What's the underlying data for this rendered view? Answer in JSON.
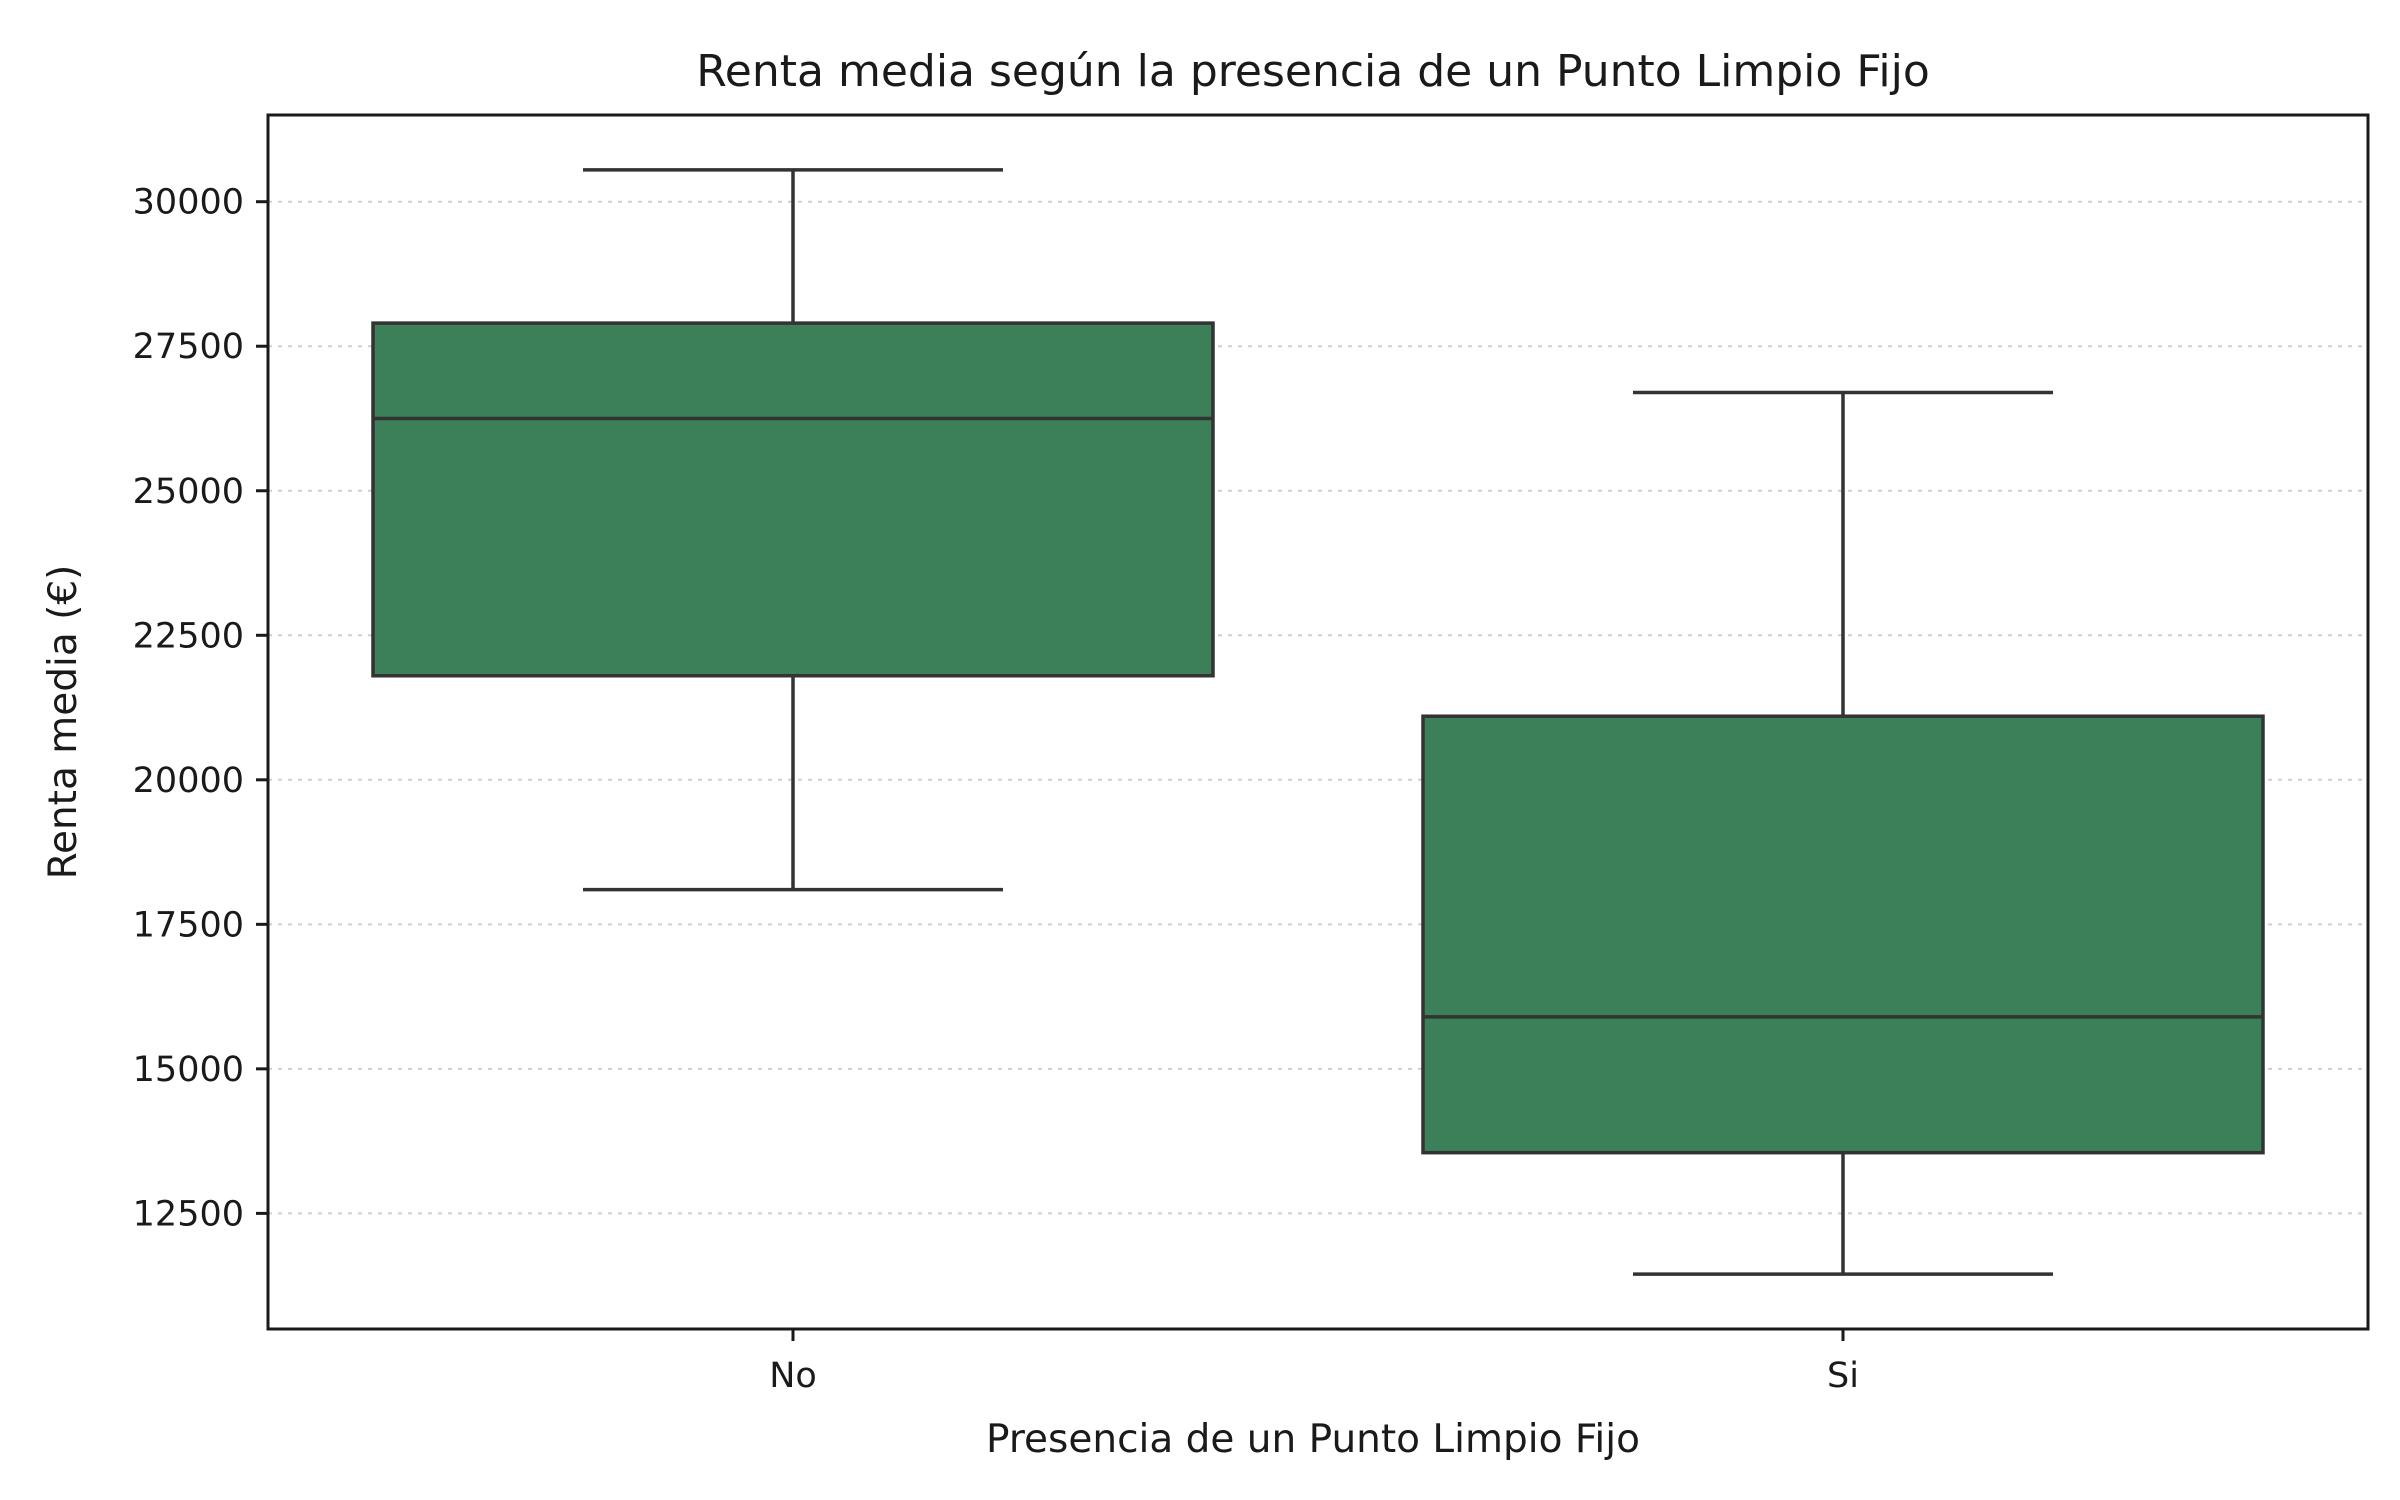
{
  "chart_data": {
    "type": "box",
    "title": "Renta media según la presencia de un Punto Limpio Fijo",
    "xlabel": "Presencia de un Punto Limpio Fijo",
    "ylabel": "Renta media (€)",
    "ylim": [
      10500,
      31500
    ],
    "yticks": [
      12500,
      15000,
      17500,
      20000,
      22500,
      25000,
      27500,
      30000
    ],
    "categories": [
      "No",
      "Si"
    ],
    "box_color": "#3b8059",
    "grid": "horizontal dotted",
    "boxes": [
      {
        "category": "No",
        "whisker_low": 18100,
        "q1": 21800,
        "median": 26250,
        "q3": 27900,
        "whisker_high": 30550
      },
      {
        "category": "Si",
        "whisker_low": 11450,
        "q1": 13550,
        "median": 15900,
        "q3": 21100,
        "whisker_high": 26700
      }
    ]
  }
}
